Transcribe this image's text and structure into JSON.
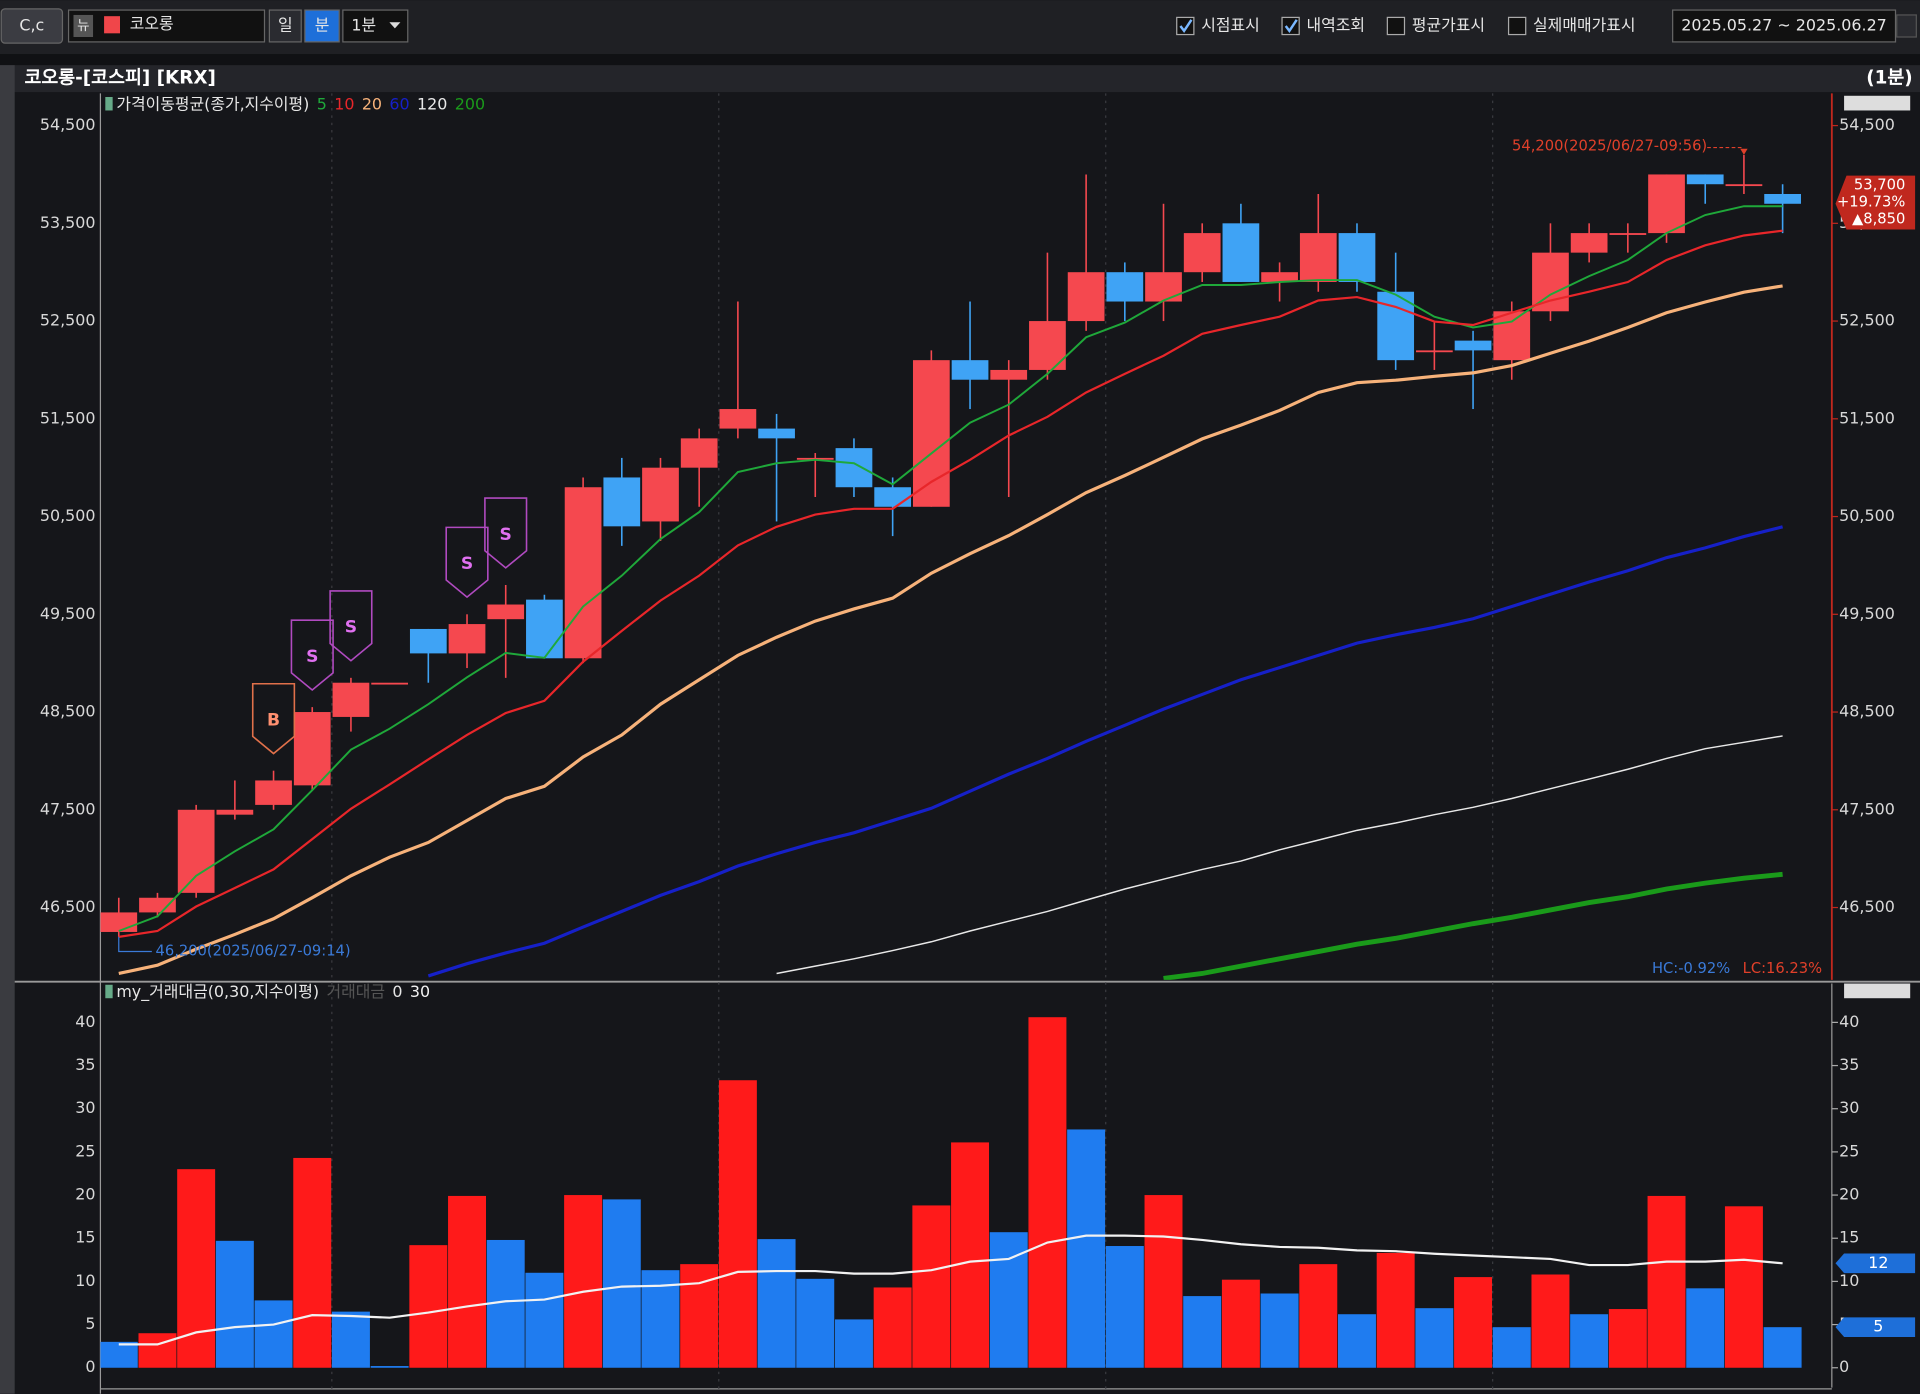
{
  "toolbar": {
    "code": "C,c",
    "news": "뉴",
    "stock": "코오롱",
    "day": "일",
    "minute": "분",
    "interval": "1분",
    "checkboxes": [
      {
        "label": "시점표시",
        "checked": true
      },
      {
        "label": "내역조회",
        "checked": true
      },
      {
        "label": "평균가표시",
        "checked": false
      },
      {
        "label": "실제매매가표시",
        "checked": false
      }
    ],
    "date_range": "2025.05.27 ~ 2025.06.27"
  },
  "chart_data": [
    {
      "type": "candlestick",
      "title": "코오롱-[코스피] [KRX]",
      "period": "(1분)",
      "legend_label": "가격이동평균(종가,지수이평)",
      "up_color": "#f5484f",
      "down_color": "#3fa3f5",
      "open": [
        46250,
        46450,
        46650,
        47450,
        47550,
        47750,
        48450,
        48800,
        49350,
        49100,
        49450,
        49650,
        49050,
        50900,
        50450,
        51000,
        51400,
        51400,
        51100,
        51200,
        50800,
        50600,
        52100,
        51900,
        52000,
        52500,
        53000,
        52700,
        53000,
        53500,
        52900,
        52900,
        53400,
        52800,
        52200,
        52300,
        52100,
        52600,
        53200,
        53400,
        53400,
        54000,
        53900,
        53800
      ],
      "high": [
        46600,
        46650,
        47550,
        47800,
        47900,
        48550,
        48850,
        48800,
        49350,
        49500,
        49800,
        49700,
        50900,
        51100,
        51100,
        51400,
        52700,
        51550,
        51150,
        51300,
        50900,
        52200,
        52700,
        52100,
        53200,
        54000,
        53100,
        53700,
        53500,
        53700,
        53100,
        53800,
        53500,
        53200,
        52500,
        52400,
        52700,
        53500,
        53500,
        53500,
        54000,
        54000,
        54200,
        53900
      ],
      "low": [
        46200,
        46400,
        46600,
        47400,
        47500,
        47700,
        48300,
        48800,
        48800,
        48950,
        48850,
        49050,
        49000,
        50200,
        50250,
        50600,
        51300,
        50450,
        50700,
        50700,
        50300,
        50600,
        51600,
        50700,
        51900,
        52400,
        52500,
        52500,
        52900,
        52900,
        52700,
        52800,
        52800,
        52000,
        52000,
        51600,
        51900,
        52500,
        53100,
        53200,
        53300,
        53700,
        53800,
        53400
      ],
      "close": [
        46450,
        46600,
        47500,
        47500,
        47800,
        48500,
        48800,
        48800,
        49100,
        49400,
        49600,
        49050,
        50800,
        50400,
        51000,
        51300,
        51600,
        51300,
        51100,
        50800,
        50600,
        52100,
        51900,
        52000,
        52500,
        53000,
        52700,
        53000,
        53400,
        52900,
        53000,
        53400,
        52900,
        52100,
        52200,
        52200,
        52600,
        53200,
        53400,
        53400,
        54000,
        53900,
        53900,
        53700
      ],
      "signals": [
        null,
        null,
        null,
        null,
        "B",
        "S",
        "S",
        null,
        null,
        "S",
        "S",
        null,
        null,
        null,
        null,
        null,
        null,
        null,
        null,
        null,
        null,
        null,
        null,
        null,
        null,
        null,
        null,
        null,
        null,
        null,
        null,
        null,
        null,
        null,
        null,
        null,
        null,
        null,
        null,
        null,
        null,
        null,
        null,
        null
      ],
      "series": [
        {
          "name": "5",
          "color": "#1fa83a",
          "width": 1.6,
          "values": [
            46260,
            46410,
            46825,
            47075,
            47300,
            47700,
            48115,
            48330,
            48580,
            48855,
            49105,
            49055,
            49580,
            49895,
            50270,
            50545,
            50955,
            51045,
            51080,
            51045,
            50830,
            51145,
            51460,
            51645,
            51960,
            52335,
            52485,
            52710,
            52870,
            52870,
            52900,
            52920,
            52920,
            52770,
            52545,
            52435,
            52495,
            52770,
            52960,
            53125,
            53400,
            53585,
            53675,
            53675
          ]
        },
        {
          "name": "10",
          "color": "#e8262a",
          "width": 1.8,
          "values": [
            46200,
            46260,
            46510,
            46700,
            46890,
            47200,
            47510,
            47760,
            48015,
            48265,
            48490,
            48615,
            49015,
            49330,
            49640,
            49895,
            50205,
            50395,
            50520,
            50580,
            50580,
            50855,
            51080,
            51330,
            51520,
            51770,
            51960,
            52145,
            52370,
            52460,
            52545,
            52710,
            52745,
            52645,
            52495,
            52460,
            52585,
            52710,
            52800,
            52900,
            53125,
            53275,
            53375,
            53425
          ]
        },
        {
          "name": "20",
          "color": "#f7b27a",
          "width": 2.6,
          "values": [
            45825,
            45910,
            46075,
            46225,
            46385,
            46600,
            46825,
            47015,
            47165,
            47390,
            47615,
            47740,
            48040,
            48265,
            48580,
            48830,
            49080,
            49265,
            49430,
            49555,
            49665,
            49920,
            50120,
            50305,
            50520,
            50745,
            50920,
            51105,
            51295,
            51435,
            51585,
            51770,
            51870,
            51895,
            51935,
            51970,
            52045,
            52170,
            52295,
            52435,
            52585,
            52695,
            52795,
            52860
          ]
        },
        {
          "name": "60",
          "color": "#1620c8",
          "width": 2.6,
          "values": [
            null,
            null,
            null,
            null,
            null,
            null,
            null,
            null,
            45800,
            45925,
            46035,
            46135,
            46300,
            46460,
            46625,
            46765,
            46925,
            47050,
            47165,
            47265,
            47390,
            47515,
            47690,
            47865,
            48025,
            48200,
            48365,
            48530,
            48680,
            48830,
            48955,
            49080,
            49205,
            49290,
            49365,
            49455,
            49580,
            49705,
            49830,
            49945,
            50080,
            50180,
            50295,
            50395
          ]
        },
        {
          "name": "120",
          "color": "#e8e8e8",
          "width": 1.2,
          "values": [
            null,
            null,
            null,
            null,
            null,
            null,
            null,
            null,
            null,
            null,
            null,
            null,
            null,
            null,
            null,
            null,
            null,
            45825,
            45900,
            45975,
            46060,
            46150,
            46260,
            46360,
            46460,
            46575,
            46690,
            46790,
            46890,
            46975,
            47090,
            47190,
            47290,
            47365,
            47450,
            47525,
            47615,
            47715,
            47815,
            47915,
            48025,
            48125,
            48190,
            48255
          ]
        },
        {
          "name": "200",
          "color": "#1a9a1a",
          "width": 4,
          "values": [
            null,
            null,
            null,
            null,
            null,
            null,
            null,
            null,
            null,
            null,
            null,
            null,
            null,
            null,
            null,
            null,
            null,
            null,
            null,
            null,
            null,
            null,
            null,
            null,
            null,
            null,
            null,
            45775,
            45825,
            45900,
            45975,
            46050,
            46125,
            46185,
            46260,
            46335,
            46400,
            46475,
            46550,
            46610,
            46690,
            46750,
            46800,
            46840
          ]
        }
      ],
      "ylim": [
        45760,
        54830
      ],
      "yticks": [
        {
          "value": 46500,
          "label": "46,500"
        },
        {
          "value": 47500,
          "label": "47,500"
        },
        {
          "value": 48500,
          "label": "48,500"
        },
        {
          "value": 49500,
          "label": "49,500"
        },
        {
          "value": 50500,
          "label": "50,500"
        },
        {
          "value": 51500,
          "label": "51,500"
        },
        {
          "value": 52500,
          "label": "52,500"
        },
        {
          "value": 53500,
          "label": "53,500"
        },
        {
          "value": 54500,
          "label": "54,500"
        }
      ],
      "annotations": [
        {
          "text": "54,200(2025/06/27-09:56)",
          "value": 54200,
          "color": "#e0402a"
        },
        {
          "text": "46,200(2025/06/27-09:14)",
          "value": 46200,
          "color": "#3a7ad8"
        }
      ],
      "current": {
        "price": "53,700",
        "change": "+19.73%",
        "diff": "▲8,850"
      },
      "hc": "HC:-0.92%",
      "lc": "LC:16.23%"
    },
    {
      "type": "bar",
      "legend_label": "my_거래대금(0,30,지수이평)",
      "param_label": "0",
      "series": [
        {
          "name": "거래대금",
          "values": [
            3,
            4,
            23,
            14.7,
            7.8,
            24.3,
            6.5,
            0.2,
            14.2,
            19.9,
            14.8,
            11,
            20,
            19.5,
            11.3,
            12,
            33.3,
            14.9,
            10.3,
            5.6,
            9.3,
            18.8,
            26.1,
            15.7,
            40.6,
            27.6,
            14.1,
            20,
            8.3,
            10.2,
            8.6,
            12,
            6.2,
            13.3,
            6.9,
            10.5,
            4.7,
            10.8,
            6.2,
            6.8,
            19.9,
            9.2,
            18.7,
            4.7
          ],
          "colors": [
            "#1f7cf0",
            "#ff1a1a",
            "#ff1a1a",
            "#1f7cf0",
            "#1f7cf0",
            "#ff1a1a",
            "#1f7cf0",
            "#1f7cf0",
            "#ff1a1a",
            "#ff1a1a",
            "#1f7cf0",
            "#1f7cf0",
            "#ff1a1a",
            "#1f7cf0",
            "#1f7cf0",
            "#ff1a1a",
            "#ff1a1a",
            "#1f7cf0",
            "#1f7cf0",
            "#1f7cf0",
            "#ff1a1a",
            "#ff1a1a",
            "#ff1a1a",
            "#1f7cf0",
            "#ff1a1a",
            "#1f7cf0",
            "#1f7cf0",
            "#ff1a1a",
            "#1f7cf0",
            "#ff1a1a",
            "#1f7cf0",
            "#ff1a1a",
            "#1f7cf0",
            "#ff1a1a",
            "#1f7cf0",
            "#ff1a1a",
            "#1f7cf0",
            "#ff1a1a",
            "#1f7cf0",
            "#ff1a1a",
            "#ff1a1a",
            "#1f7cf0",
            "#ff1a1a",
            "#1f7cf0"
          ],
          "last_label": "5"
        },
        {
          "name": "30",
          "color": "#f2f2f2",
          "values": [
            2.7,
            2.7,
            4.1,
            4.7,
            5.0,
            6.1,
            6.0,
            5.8,
            6.4,
            7.1,
            7.7,
            7.9,
            8.8,
            9.4,
            9.5,
            9.8,
            11.1,
            11.2,
            11.2,
            10.9,
            10.9,
            11.3,
            12.3,
            12.6,
            14.5,
            15.3,
            15.3,
            15.2,
            14.8,
            14.3,
            14.0,
            13.9,
            13.6,
            13.5,
            13.2,
            13.0,
            12.8,
            12.6,
            11.9,
            11.9,
            12.3,
            12.3,
            12.5,
            12.1
          ],
          "last_label": "12"
        }
      ],
      "ylim": [
        -2.3,
        44.5
      ],
      "yticks": [
        0,
        5,
        10,
        15,
        20,
        25,
        30,
        35,
        40
      ]
    }
  ]
}
